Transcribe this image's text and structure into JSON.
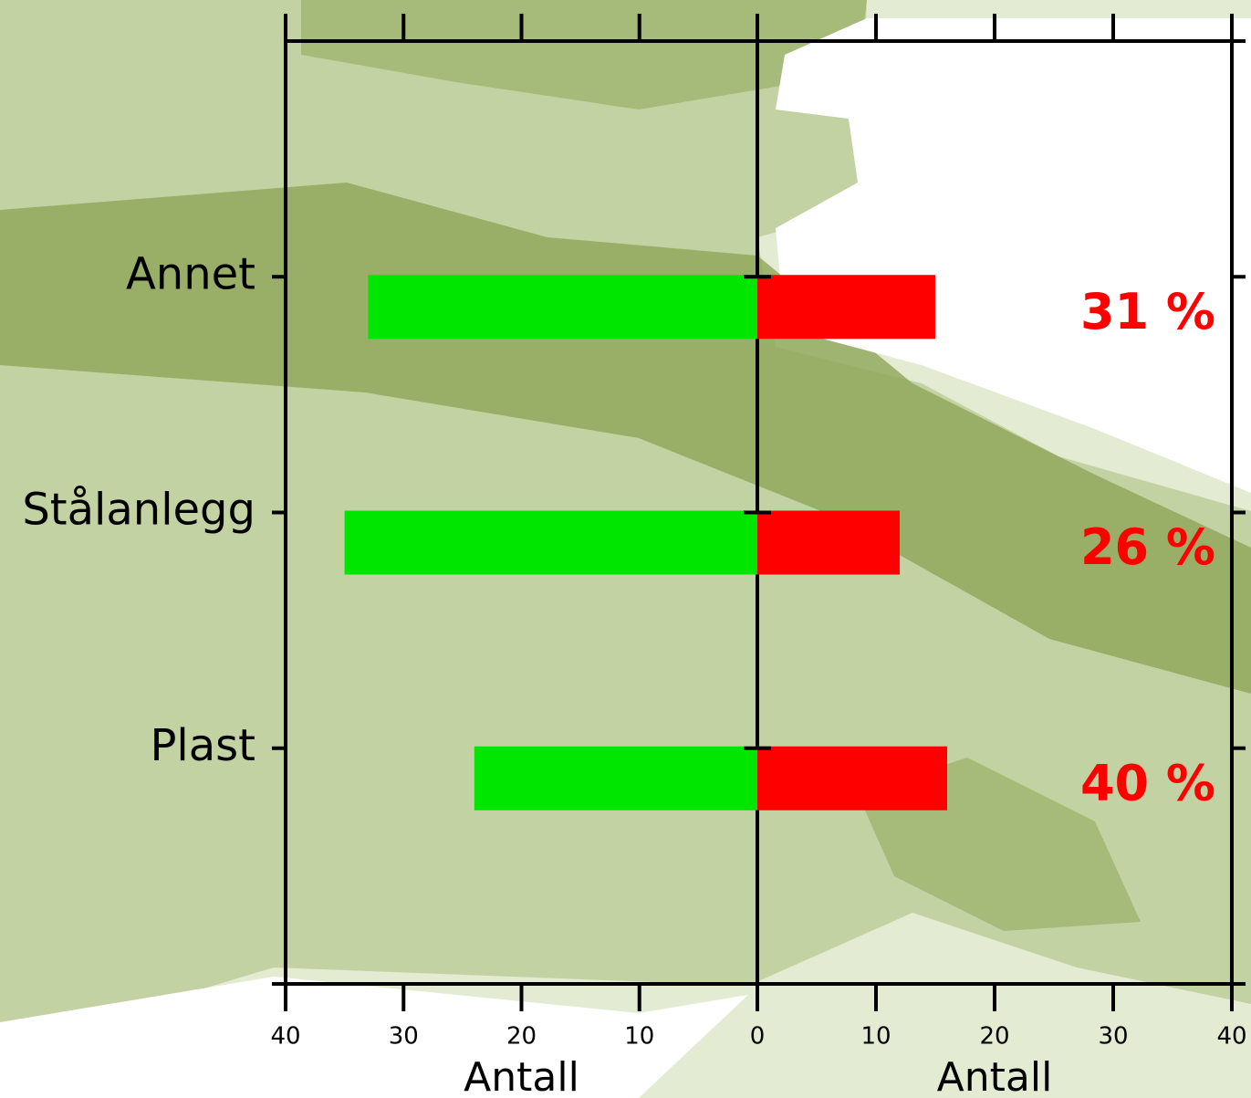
{
  "chart_data": {
    "type": "bar",
    "orientation": "horizontal",
    "categories": [
      "Annet",
      "Stålanlegg",
      "Plast"
    ],
    "series": [
      {
        "color": "#00e600",
        "direction": "left",
        "values": [
          33,
          35,
          24
        ]
      },
      {
        "color": "#ff0000",
        "direction": "right",
        "values": [
          15,
          12,
          16
        ]
      }
    ],
    "share_labels": [
      "31 %",
      "26 %",
      "40 %"
    ],
    "share_color": "#ff0000",
    "xlim": [
      0,
      40
    ],
    "xticks": [
      0,
      10,
      20,
      30,
      40
    ],
    "xlabel": "Antall"
  }
}
